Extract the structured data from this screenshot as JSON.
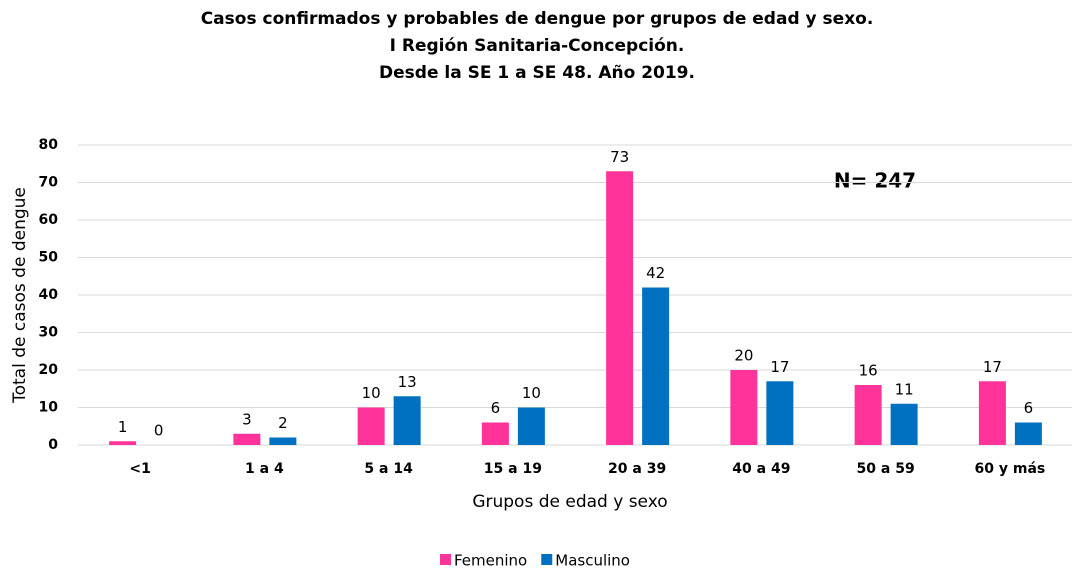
{
  "chart_data": {
    "type": "bar",
    "title": [
      "Casos confirmados y probables de dengue por grupos de edad y sexo.",
      "I Región Sanitaria-Concepción.",
      "Desde la SE 1 a SE 48. Año 2019."
    ],
    "annotation": "N= 247",
    "x_label": "Grupos de edad y sexo",
    "y_label": "Total de casos de dengue",
    "categories": [
      "<1",
      "1 a 4",
      "5 a 14",
      "15 a 19",
      "20 a 39",
      "40 a 49",
      "50 a 59",
      "60 y más"
    ],
    "series": [
      {
        "name": "Femenino",
        "color": "#ff3399",
        "values": [
          1,
          3,
          10,
          6,
          73,
          20,
          16,
          17
        ]
      },
      {
        "name": "Masculino",
        "color": "#0070c0",
        "values": [
          0,
          2,
          13,
          10,
          42,
          17,
          11,
          6
        ]
      }
    ],
    "ylim": [
      0,
      80
    ],
    "yticks": [
      0,
      10,
      20,
      30,
      40,
      50,
      60,
      70,
      80
    ],
    "grid": true,
    "legend": "bottom"
  }
}
